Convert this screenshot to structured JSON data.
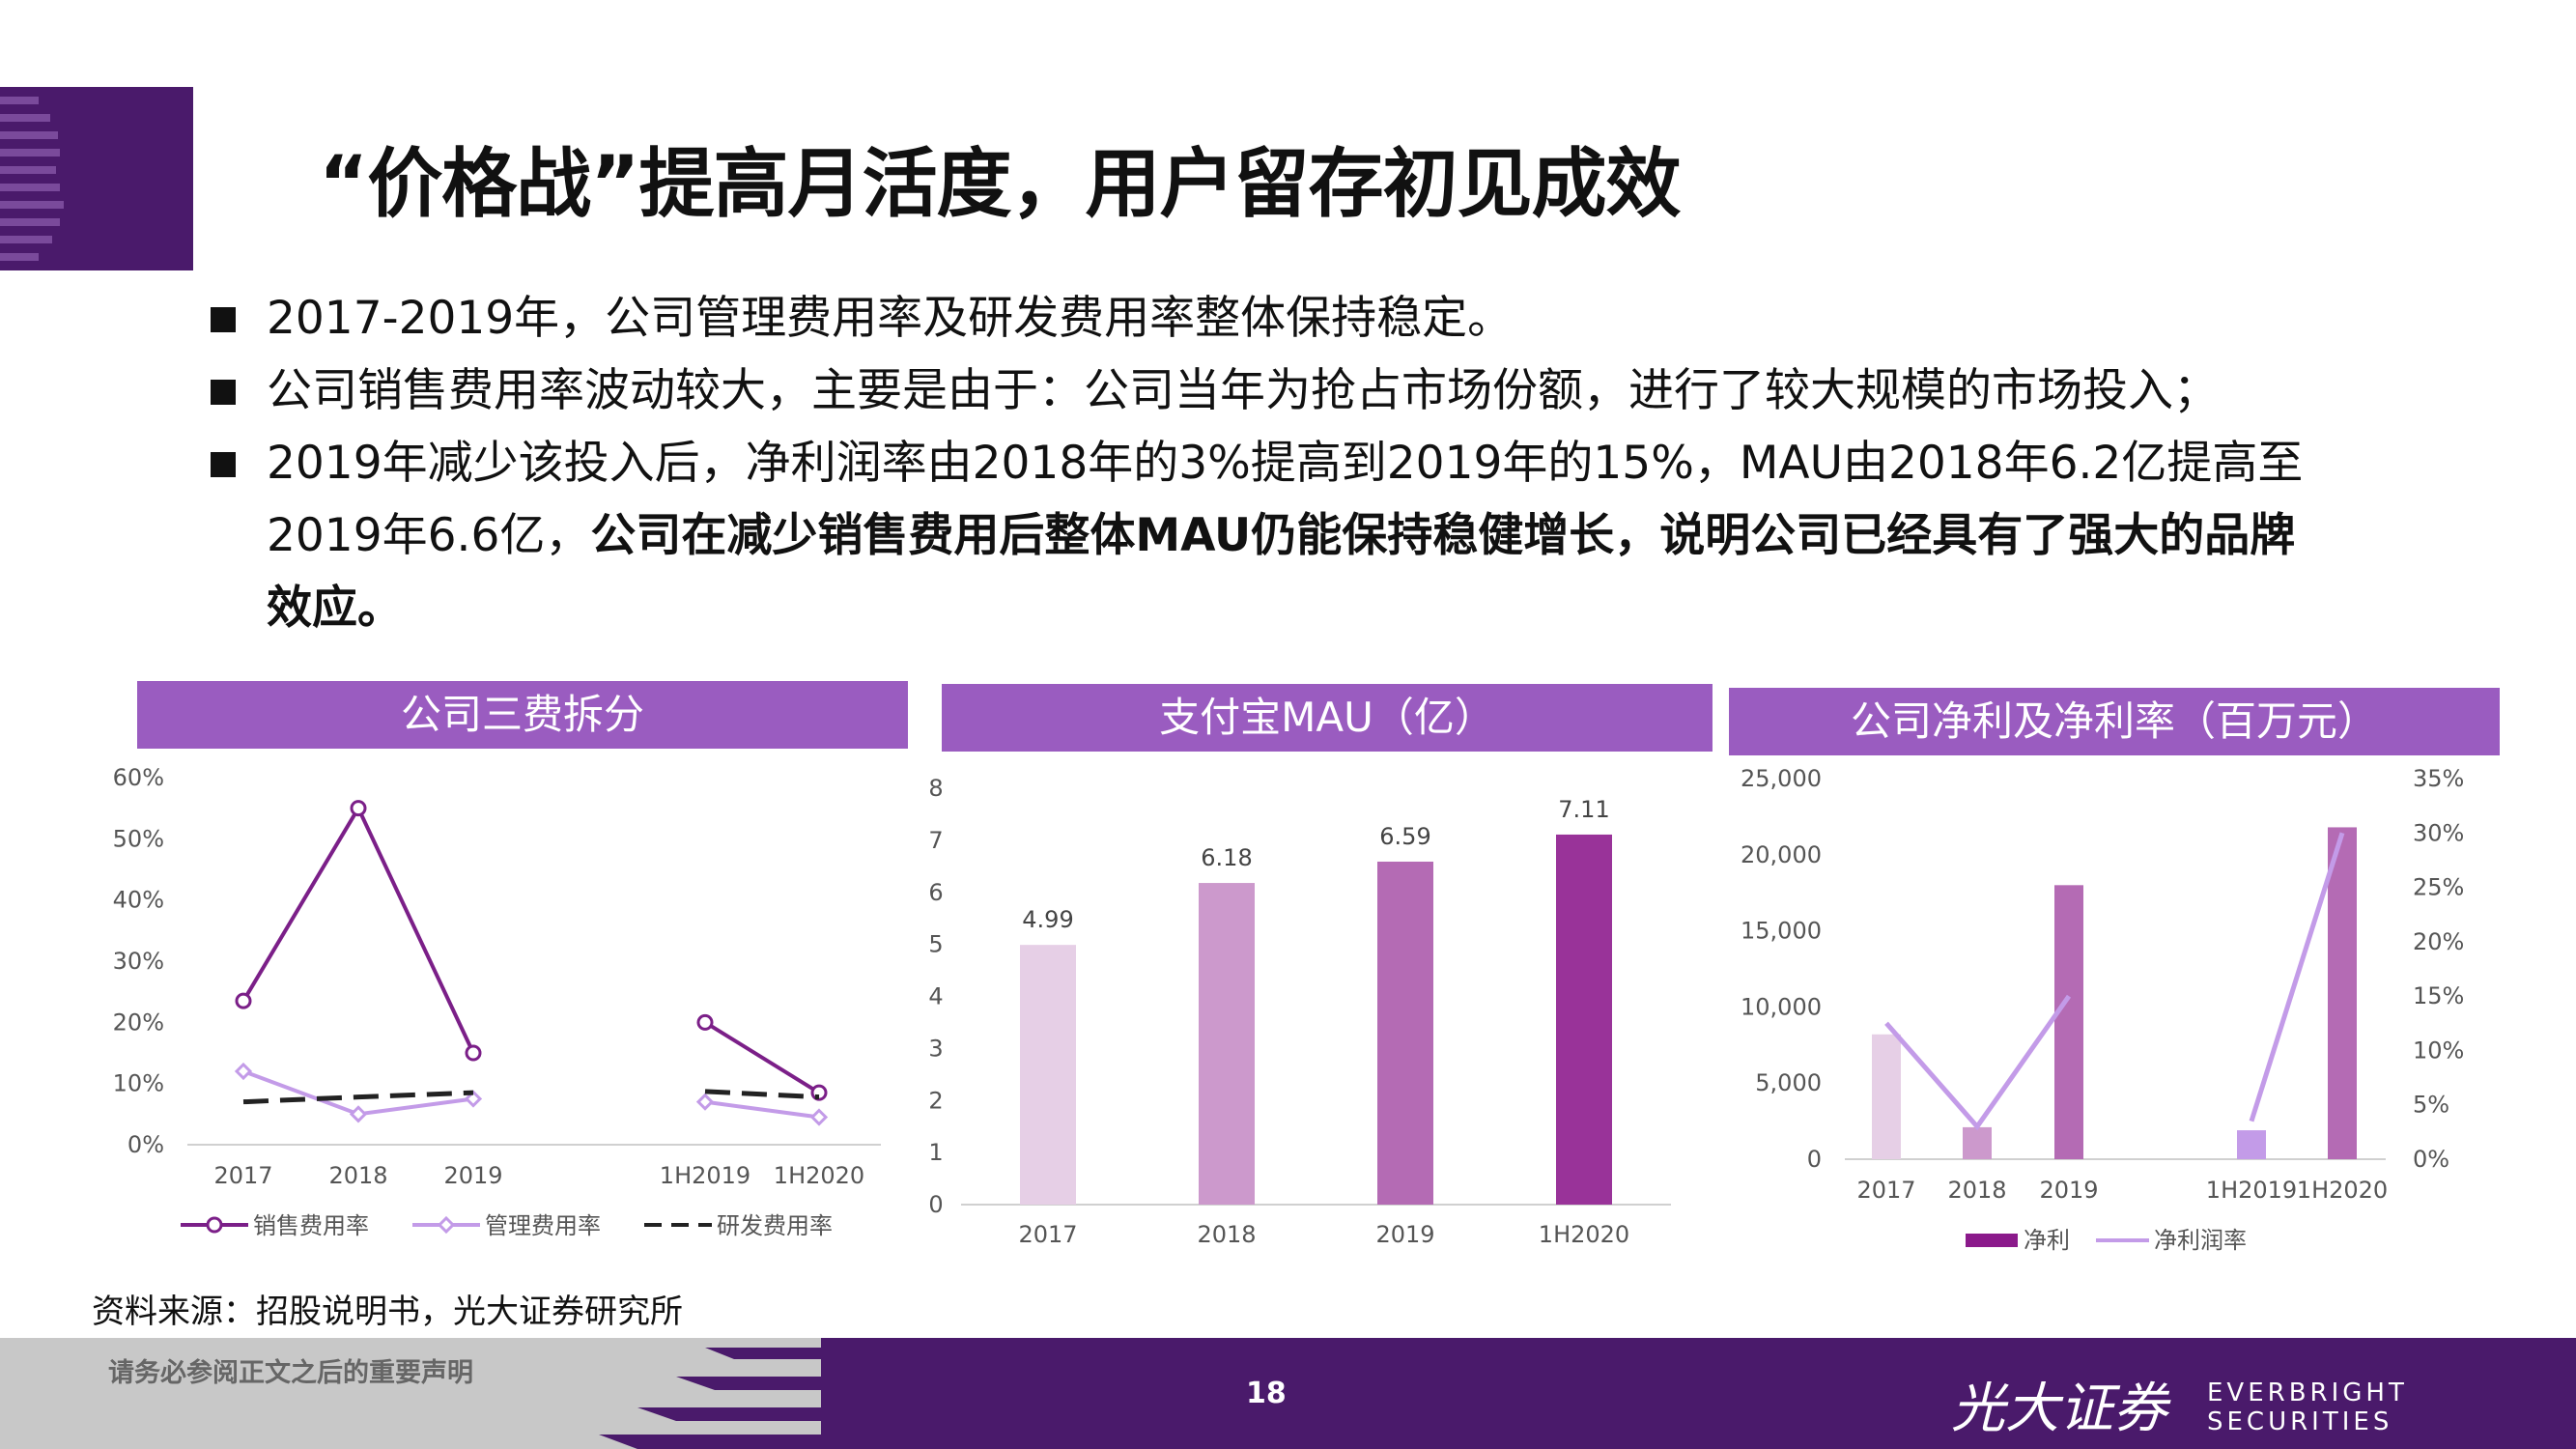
{
  "title": "“价格战”提高月活度，用户留存初见成效",
  "bullets": [
    {
      "text": "2017-2019年，公司管理费用率及研发费用率整体保持稳定。",
      "bold": ""
    },
    {
      "text": "公司销售费用率波动较大，主要是由于：公司当年为抢占市场份额，进行了较大规模的市场投入；",
      "bold": ""
    },
    {
      "text": "2019年减少该投入后，净利润率由2018年的3%提高到2019年的15%，MAU由2018年6.2亿提高至2019年6.6亿，",
      "bold": "公司在减少销售费用后整体MAU仍能保持稳健增长，说明公司已经具有了强大的品牌效应。"
    }
  ],
  "panels": {
    "left_title": "公司三费拆分",
    "mid_title": "支付宝MAU（亿）",
    "right_title": "公司净利及净利率（百万元）"
  },
  "colors": {
    "accent": "#9a5cc0",
    "dark": "#4a1a6b"
  },
  "chart_data": [
    {
      "type": "line",
      "title": "公司三费拆分",
      "categories": [
        "2017",
        "2018",
        "2019",
        "1H2019",
        "1H2020"
      ],
      "ylim": [
        0,
        60
      ],
      "yticks": [
        "0%",
        "10%",
        "20%",
        "30%",
        "40%",
        "50%",
        "60%"
      ],
      "legend_position": "bottom",
      "series": [
        {
          "name": "销售费用率",
          "color": "#7b1f88",
          "style": "solid-circle",
          "values": [
            23.5,
            55,
            15,
            20,
            8.5
          ]
        },
        {
          "name": "管理费用率",
          "color": "#c39be8",
          "style": "solid-diamond",
          "values": [
            12,
            5,
            7.5,
            7,
            4.5
          ]
        },
        {
          "name": "研发费用率",
          "color": "#222222",
          "style": "dashed",
          "values": [
            7,
            7.8,
            8.5,
            8.7,
            7.8
          ]
        }
      ]
    },
    {
      "type": "bar",
      "title": "支付宝MAU（亿）",
      "categories": [
        "2017",
        "2018",
        "2019",
        "1H2020"
      ],
      "values": [
        4.99,
        6.18,
        6.59,
        7.11
      ],
      "labels": [
        "4.99",
        "6.18",
        "6.59",
        "7.11"
      ],
      "bar_colors": [
        "#e6cfe6",
        "#cc99cc",
        "#b46bb4",
        "#993399"
      ],
      "ylim": [
        0,
        8
      ],
      "yticks": [
        "0",
        "1",
        "2",
        "3",
        "4",
        "5",
        "6",
        "7",
        "8"
      ]
    },
    {
      "type": "bar",
      "title": "公司净利及净利率（百万元）",
      "categories": [
        "2017",
        "2018",
        "2019",
        "1H2019",
        "1H2020"
      ],
      "series": [
        {
          "name": "净利",
          "type": "bar",
          "axis": "left",
          "values": [
            8200,
            2100,
            18000,
            1900,
            21800
          ],
          "bar_colors": [
            "#e6cfe6",
            "#cc99cc",
            "#b46bb4",
            "#c39be8",
            "#b46bb4"
          ],
          "legend_color": "#8b1a8b"
        },
        {
          "name": "净利润率",
          "type": "line",
          "axis": "right",
          "color": "#c39be8",
          "values": [
            12.5,
            3,
            15,
            3.5,
            30
          ]
        }
      ],
      "ylim_left": [
        0,
        25000
      ],
      "ylim_right": [
        0,
        35
      ],
      "yticks_left": [
        "0",
        "5,000",
        "10,000",
        "15,000",
        "20,000",
        "25,000"
      ],
      "yticks_right": [
        "0%",
        "5%",
        "10%",
        "15%",
        "20%",
        "25%",
        "30%",
        "35%"
      ],
      "legend_position": "bottom"
    }
  ],
  "source": "资料来源：招股说明书，光大证券研究所",
  "footer": {
    "disclaimer": "请务必参阅正文之后的重要声明",
    "page": "18",
    "brand_cn": "光大证券",
    "brand_en": "EVERBRIGHT SECURITIES"
  }
}
